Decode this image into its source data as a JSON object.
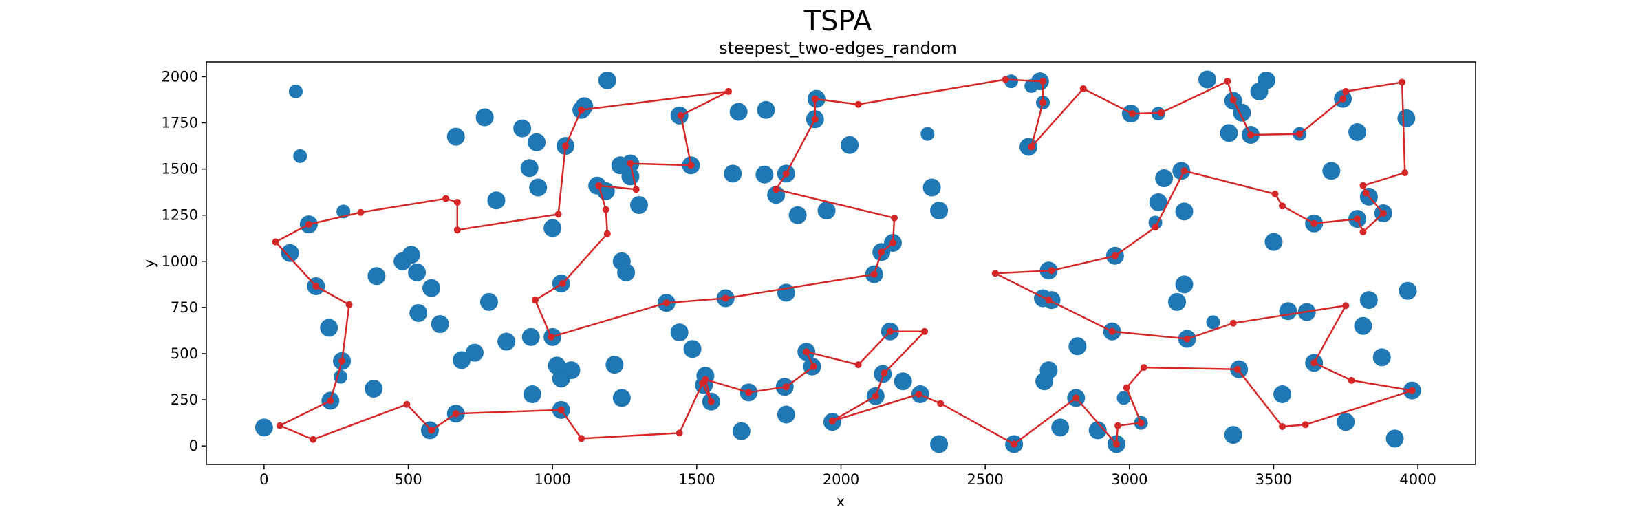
{
  "chart_data": {
    "type": "scatter",
    "title": "TSPA",
    "subtitle": "steepest_two-edges_random",
    "xlabel": "x",
    "ylabel": "y",
    "xlim": [
      -200,
      4200
    ],
    "ylim": [
      -100,
      2080
    ],
    "xticks": [
      0,
      500,
      1000,
      1500,
      2000,
      2500,
      3000,
      3500,
      4000
    ],
    "yticks": [
      0,
      250,
      500,
      750,
      1000,
      1250,
      1500,
      1750,
      2000
    ],
    "grid": false,
    "legend": "none",
    "colors": {
      "points": "#1f77b4",
      "path": "#d62728",
      "axes": "#000000"
    },
    "points": [
      [
        0,
        100,
        2
      ],
      [
        110,
        1920,
        1
      ],
      [
        125,
        1570,
        1
      ],
      [
        90,
        1045,
        2
      ],
      [
        225,
        640,
        2
      ],
      [
        270,
        460,
        2
      ],
      [
        230,
        245,
        2
      ],
      [
        380,
        310,
        2
      ],
      [
        390,
        920,
        2
      ],
      [
        480,
        1000,
        2
      ],
      [
        510,
        1035,
        2
      ],
      [
        530,
        940,
        2
      ],
      [
        535,
        720,
        2
      ],
      [
        580,
        855,
        2
      ],
      [
        610,
        660,
        2
      ],
      [
        665,
        1675,
        2
      ],
      [
        685,
        465,
        2
      ],
      [
        730,
        505,
        2
      ],
      [
        765,
        1780,
        2
      ],
      [
        780,
        780,
        2
      ],
      [
        805,
        1330,
        2
      ],
      [
        840,
        565,
        2
      ],
      [
        895,
        1720,
        2
      ],
      [
        920,
        1505,
        2
      ],
      [
        925,
        590,
        2
      ],
      [
        930,
        280,
        2
      ],
      [
        945,
        1645,
        2
      ],
      [
        950,
        1400,
        2
      ],
      [
        1000,
        1180,
        2
      ],
      [
        1015,
        435,
        2
      ],
      [
        1030,
        365,
        2
      ],
      [
        1065,
        410,
        2
      ],
      [
        1190,
        1980,
        2
      ],
      [
        1215,
        440,
        2
      ],
      [
        1240,
        1000,
        2
      ],
      [
        1240,
        260,
        2
      ],
      [
        1255,
        940,
        2
      ],
      [
        1300,
        1305,
        2
      ],
      [
        1440,
        615,
        2
      ],
      [
        1485,
        525,
        2
      ],
      [
        1625,
        1475,
        2
      ],
      [
        1645,
        1810,
        2
      ],
      [
        1655,
        80,
        2
      ],
      [
        1740,
        1820,
        2
      ],
      [
        1735,
        1470,
        2
      ],
      [
        1810,
        170,
        2
      ],
      [
        1850,
        1250,
        2
      ],
      [
        1950,
        1275,
        2
      ],
      [
        2030,
        1630,
        2
      ],
      [
        2170,
        620,
        2
      ],
      [
        2215,
        350,
        2
      ],
      [
        2275,
        280,
        2
      ],
      [
        2300,
        1690,
        1
      ],
      [
        2315,
        1400,
        2
      ],
      [
        2340,
        1275,
        2
      ],
      [
        2340,
        10,
        2
      ],
      [
        2760,
        100,
        2
      ],
      [
        2720,
        410,
        2
      ],
      [
        2705,
        350,
        2
      ],
      [
        2820,
        540,
        2
      ],
      [
        2890,
        85,
        2
      ],
      [
        3005,
        1800,
        2
      ],
      [
        3100,
        1800,
        1
      ],
      [
        3120,
        1450,
        2
      ],
      [
        3100,
        1320,
        2
      ],
      [
        3190,
        1270,
        2
      ],
      [
        3190,
        875,
        2
      ],
      [
        3165,
        780,
        2
      ],
      [
        3270,
        1985,
        2
      ],
      [
        3345,
        1695,
        2
      ],
      [
        3360,
        1870,
        2
      ],
      [
        3390,
        1805,
        2
      ],
      [
        3450,
        1920,
        2
      ],
      [
        3475,
        1980,
        2
      ],
      [
        3360,
        60,
        2
      ],
      [
        3500,
        1105,
        2
      ],
      [
        3530,
        280,
        2
      ],
      [
        3550,
        730,
        2
      ],
      [
        3615,
        725,
        2
      ],
      [
        3700,
        1490,
        2
      ],
      [
        3740,
        1880,
        2
      ],
      [
        3790,
        1700,
        2
      ],
      [
        3810,
        650,
        2
      ],
      [
        3830,
        1350,
        2
      ],
      [
        3830,
        790,
        2
      ],
      [
        3875,
        480,
        2
      ],
      [
        3750,
        130,
        2
      ],
      [
        3920,
        40,
        2
      ],
      [
        3965,
        840,
        2
      ],
      [
        3960,
        1775,
        2
      ],
      [
        3980,
        300,
        2
      ],
      [
        3790,
        1230,
        2
      ],
      [
        3880,
        1260,
        2
      ],
      [
        3640,
        1205,
        2
      ],
      [
        3090,
        1210,
        1
      ],
      [
        2590,
        1975,
        1
      ],
      [
        2690,
        1975,
        2
      ],
      [
        2660,
        1950,
        1
      ],
      [
        2700,
        1860,
        1
      ],
      [
        2650,
        1620,
        2
      ],
      [
        3420,
        1685,
        2
      ],
      [
        3590,
        1690,
        1
      ],
      [
        3180,
        1490,
        2
      ],
      [
        3200,
        580,
        2
      ],
      [
        2940,
        620,
        2
      ],
      [
        2720,
        950,
        2
      ],
      [
        2700,
        800,
        2
      ],
      [
        2730,
        790,
        2
      ],
      [
        2950,
        1030,
        2
      ],
      [
        3290,
        670,
        1
      ],
      [
        3380,
        415,
        2
      ],
      [
        3640,
        450,
        2
      ],
      [
        2980,
        260,
        1
      ],
      [
        3040,
        125,
        1
      ],
      [
        2955,
        10,
        2
      ],
      [
        2815,
        260,
        2
      ],
      [
        2600,
        10,
        2
      ],
      [
        1155,
        1410,
        2
      ],
      [
        1185,
        1380,
        2
      ],
      [
        1270,
        1530,
        2
      ],
      [
        1270,
        1460,
        2
      ],
      [
        1235,
        1520,
        2
      ],
      [
        1480,
        1520,
        2
      ],
      [
        1440,
        1790,
        2
      ],
      [
        1100,
        1820,
        2
      ],
      [
        1110,
        1840,
        2
      ],
      [
        1045,
        1625,
        2
      ],
      [
        1030,
        880,
        2
      ],
      [
        1000,
        590,
        2
      ],
      [
        1530,
        380,
        2
      ],
      [
        1525,
        330,
        2
      ],
      [
        1550,
        240,
        2
      ],
      [
        1395,
        775,
        2
      ],
      [
        1600,
        800,
        2
      ],
      [
        1810,
        830,
        2
      ],
      [
        1810,
        1475,
        2
      ],
      [
        1910,
        1770,
        2
      ],
      [
        1915,
        1880,
        2
      ],
      [
        1775,
        1360,
        2
      ],
      [
        2180,
        1100,
        2
      ],
      [
        2140,
        1050,
        2
      ],
      [
        2115,
        930,
        2
      ],
      [
        2145,
        390,
        2
      ],
      [
        2120,
        270,
        2
      ],
      [
        1970,
        130,
        2
      ],
      [
        1900,
        430,
        2
      ],
      [
        1880,
        510,
        2
      ],
      [
        1805,
        320,
        2
      ],
      [
        1680,
        290,
        2
      ],
      [
        1030,
        195,
        2
      ],
      [
        665,
        175,
        2
      ],
      [
        575,
        85,
        2
      ],
      [
        265,
        375,
        1
      ],
      [
        275,
        1270,
        1
      ],
      [
        155,
        1200,
        2
      ],
      [
        180,
        865,
        2
      ]
    ],
    "path": [
      [
        40,
        1105
      ],
      [
        155,
        1200
      ],
      [
        335,
        1265
      ],
      [
        630,
        1340
      ],
      [
        670,
        1320
      ],
      [
        670,
        1170
      ],
      [
        1020,
        1255
      ],
      [
        1045,
        1625
      ],
      [
        1100,
        1820
      ],
      [
        1610,
        1920
      ],
      [
        1445,
        1790
      ],
      [
        1480,
        1520
      ],
      [
        1270,
        1530
      ],
      [
        1290,
        1390
      ],
      [
        1160,
        1410
      ],
      [
        1185,
        1280
      ],
      [
        1190,
        1150
      ],
      [
        1035,
        880
      ],
      [
        940,
        790
      ],
      [
        995,
        590
      ],
      [
        1395,
        775
      ],
      [
        1600,
        800
      ],
      [
        2115,
        930
      ],
      [
        2140,
        1050
      ],
      [
        2180,
        1100
      ],
      [
        2185,
        1235
      ],
      [
        1775,
        1390
      ],
      [
        1810,
        1475
      ],
      [
        1910,
        1770
      ],
      [
        1910,
        1880
      ],
      [
        2060,
        1850
      ],
      [
        2570,
        1985
      ],
      [
        2700,
        1975
      ],
      [
        2700,
        1860
      ],
      [
        2660,
        1620
      ],
      [
        2840,
        1935
      ],
      [
        3010,
        1800
      ],
      [
        3110,
        1805
      ],
      [
        3340,
        1975
      ],
      [
        3360,
        1875
      ],
      [
        3420,
        1685
      ],
      [
        3590,
        1690
      ],
      [
        3740,
        1880
      ],
      [
        3750,
        1920
      ],
      [
        3945,
        1970
      ],
      [
        3955,
        1480
      ],
      [
        3810,
        1410
      ],
      [
        3820,
        1370
      ],
      [
        3880,
        1260
      ],
      [
        3810,
        1160
      ],
      [
        3790,
        1230
      ],
      [
        3640,
        1205
      ],
      [
        3530,
        1300
      ],
      [
        3505,
        1365
      ],
      [
        3190,
        1490
      ],
      [
        3090,
        1185
      ],
      [
        2950,
        1030
      ],
      [
        2730,
        950
      ],
      [
        2535,
        935
      ],
      [
        2720,
        790
      ],
      [
        2940,
        620
      ],
      [
        3200,
        580
      ],
      [
        3360,
        665
      ],
      [
        3750,
        760
      ],
      [
        3640,
        450
      ],
      [
        3770,
        355
      ],
      [
        3980,
        300
      ],
      [
        3610,
        115
      ],
      [
        3530,
        105
      ],
      [
        3375,
        415
      ],
      [
        3050,
        425
      ],
      [
        2990,
        315
      ],
      [
        3040,
        125
      ],
      [
        2960,
        110
      ],
      [
        2955,
        10
      ],
      [
        2815,
        260
      ],
      [
        2600,
        10
      ],
      [
        2345,
        230
      ],
      [
        2270,
        280
      ],
      [
        1970,
        135
      ],
      [
        2120,
        270
      ],
      [
        2150,
        395
      ],
      [
        2290,
        620
      ],
      [
        2170,
        620
      ],
      [
        2060,
        440
      ],
      [
        1880,
        510
      ],
      [
        1905,
        430
      ],
      [
        1810,
        320
      ],
      [
        1680,
        290
      ],
      [
        1530,
        360
      ],
      [
        1550,
        240
      ],
      [
        1520,
        340
      ],
      [
        1440,
        70
      ],
      [
        1100,
        40
      ],
      [
        1030,
        195
      ],
      [
        665,
        175
      ],
      [
        580,
        85
      ],
      [
        495,
        225
      ],
      [
        170,
        35
      ],
      [
        55,
        110
      ],
      [
        230,
        245
      ],
      [
        270,
        460
      ],
      [
        295,
        765
      ],
      [
        180,
        865
      ],
      [
        40,
        1105
      ]
    ]
  }
}
